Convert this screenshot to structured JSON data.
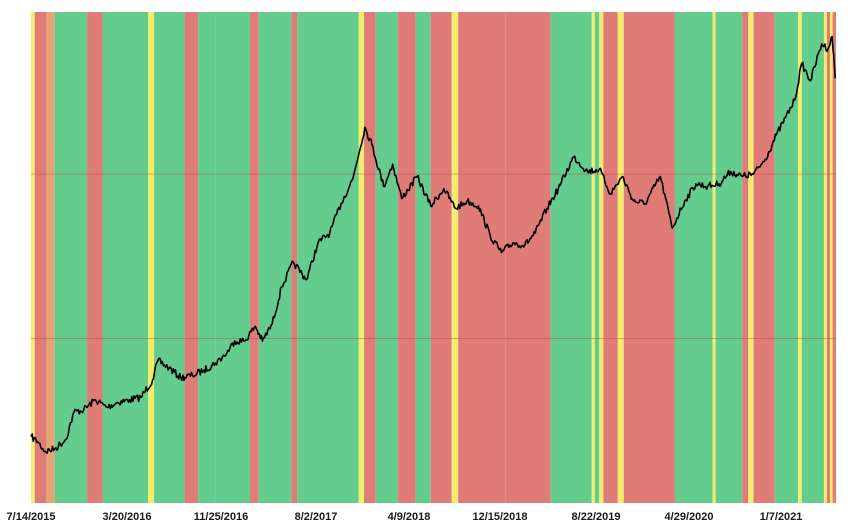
{
  "chart_data": {
    "type": "line",
    "title": "",
    "xlabel": "",
    "ylabel": "",
    "x_ticks": [
      "7/14/2015",
      "3/20/2016",
      "11/25/2016",
      "8/2/2017",
      "4/9/2018",
      "12/15/2018",
      "8/22/2019",
      "4/29/2020",
      "1/7/2021"
    ],
    "y_ticks": [],
    "grid": "horizontal",
    "series": [
      {
        "color": "#000000",
        "points": [
          [
            "2015-07-14",
            0.135
          ],
          [
            "2015-08-01",
            0.125
          ],
          [
            "2015-08-20",
            0.105
          ],
          [
            "2015-09-15",
            0.11
          ],
          [
            "2015-10-15",
            0.13
          ],
          [
            "2015-11-05",
            0.185
          ],
          [
            "2015-12-01",
            0.19
          ],
          [
            "2016-01-01",
            0.21
          ],
          [
            "2016-02-01",
            0.195
          ],
          [
            "2016-03-01",
            0.205
          ],
          [
            "2016-04-01",
            0.21
          ],
          [
            "2016-05-01",
            0.215
          ],
          [
            "2016-06-01",
            0.25
          ],
          [
            "2016-06-15",
            0.29
          ],
          [
            "2016-07-15",
            0.275
          ],
          [
            "2016-08-15",
            0.255
          ],
          [
            "2016-09-15",
            0.26
          ],
          [
            "2016-10-15",
            0.27
          ],
          [
            "2016-11-15",
            0.285
          ],
          [
            "2016-12-15",
            0.305
          ],
          [
            "2017-01-05",
            0.33
          ],
          [
            "2017-02-01",
            0.33
          ],
          [
            "2017-03-01",
            0.36
          ],
          [
            "2017-03-20",
            0.33
          ],
          [
            "2017-04-15",
            0.365
          ],
          [
            "2017-05-10",
            0.44
          ],
          [
            "2017-06-10",
            0.49
          ],
          [
            "2017-07-15",
            0.455
          ],
          [
            "2017-08-15",
            0.53
          ],
          [
            "2017-09-15",
            0.55
          ],
          [
            "2017-10-15",
            0.61
          ],
          [
            "2017-11-15",
            0.66
          ],
          [
            "2017-12-17",
            0.765
          ],
          [
            "2018-01-05",
            0.73
          ],
          [
            "2018-02-05",
            0.645
          ],
          [
            "2018-03-01",
            0.69
          ],
          [
            "2018-03-25",
            0.62
          ],
          [
            "2018-05-05",
            0.665
          ],
          [
            "2018-06-10",
            0.605
          ],
          [
            "2018-07-15",
            0.64
          ],
          [
            "2018-08-15",
            0.6
          ],
          [
            "2018-09-15",
            0.615
          ],
          [
            "2018-10-15",
            0.605
          ],
          [
            "2018-11-15",
            0.545
          ],
          [
            "2018-12-15",
            0.51
          ],
          [
            "2019-01-15",
            0.53
          ],
          [
            "2019-02-15",
            0.525
          ],
          [
            "2019-03-15",
            0.55
          ],
          [
            "2019-04-15",
            0.6
          ],
          [
            "2019-05-15",
            0.64
          ],
          [
            "2019-06-25",
            0.705
          ],
          [
            "2019-08-01",
            0.675
          ],
          [
            "2019-09-01",
            0.68
          ],
          [
            "2019-10-01",
            0.63
          ],
          [
            "2019-11-01",
            0.665
          ],
          [
            "2019-12-01",
            0.615
          ],
          [
            "2020-01-01",
            0.61
          ],
          [
            "2020-02-10",
            0.665
          ],
          [
            "2020-03-13",
            0.56
          ],
          [
            "2020-04-15",
            0.615
          ],
          [
            "2020-05-15",
            0.65
          ],
          [
            "2020-06-15",
            0.645
          ],
          [
            "2020-07-15",
            0.65
          ],
          [
            "2020-08-15",
            0.675
          ],
          [
            "2020-09-15",
            0.665
          ],
          [
            "2020-10-15",
            0.67
          ],
          [
            "2020-11-15",
            0.7
          ],
          [
            "2020-12-15",
            0.75
          ],
          [
            "2021-01-08",
            0.785
          ],
          [
            "2021-02-01",
            0.82
          ],
          [
            "2021-02-20",
            0.895
          ],
          [
            "2021-03-15",
            0.86
          ],
          [
            "2021-04-14",
            0.935
          ],
          [
            "2021-05-01",
            0.925
          ],
          [
            "2021-05-12",
            0.95
          ],
          [
            "2021-05-20",
            0.865
          ]
        ]
      }
    ],
    "regions": [
      {
        "start": "2015-07-14",
        "end": "2015-07-24",
        "color": "#f2ee6b"
      },
      {
        "start": "2015-07-24",
        "end": "2015-08-24",
        "color": "#df7c78"
      },
      {
        "start": "2015-08-24",
        "end": "2015-09-15",
        "color": "#e1a576"
      },
      {
        "start": "2015-09-15",
        "end": "2015-12-10",
        "color": "#64cd8d"
      },
      {
        "start": "2015-12-10",
        "end": "2016-01-20",
        "color": "#df7c78"
      },
      {
        "start": "2016-01-20",
        "end": "2016-05-20",
        "color": "#64cd8d"
      },
      {
        "start": "2016-05-20",
        "end": "2016-06-05",
        "color": "#f2ee6b"
      },
      {
        "start": "2016-06-05",
        "end": "2016-08-25",
        "color": "#64cd8d"
      },
      {
        "start": "2016-08-25",
        "end": "2016-09-30",
        "color": "#df7c78"
      },
      {
        "start": "2016-09-30",
        "end": "2016-11-15",
        "color": "#64cd8d"
      },
      {
        "start": "2016-11-15",
        "end": "2017-02-15",
        "color": "#64cd8d"
      },
      {
        "start": "2017-02-15",
        "end": "2017-03-10",
        "color": "#df7c78"
      },
      {
        "start": "2017-03-10",
        "end": "2017-06-05",
        "color": "#64cd8d"
      },
      {
        "start": "2017-06-05",
        "end": "2017-06-20",
        "color": "#df7c78"
      },
      {
        "start": "2017-06-20",
        "end": "2017-12-01",
        "color": "#64cd8d"
      },
      {
        "start": "2017-12-01",
        "end": "2017-12-15",
        "color": "#f2ee6b"
      },
      {
        "start": "2017-12-15",
        "end": "2018-01-15",
        "color": "#df7c78"
      },
      {
        "start": "2018-01-15",
        "end": "2018-03-15",
        "color": "#64cd8d"
      },
      {
        "start": "2018-03-15",
        "end": "2018-05-01",
        "color": "#df7c78"
      },
      {
        "start": "2018-05-01",
        "end": "2018-06-10",
        "color": "#64cd8d"
      },
      {
        "start": "2018-06-10",
        "end": "2018-08-05",
        "color": "#df7c78"
      },
      {
        "start": "2018-08-05",
        "end": "2018-08-22",
        "color": "#f2ee6b"
      },
      {
        "start": "2018-08-22",
        "end": "2018-12-25",
        "color": "#df7c78"
      },
      {
        "start": "2018-12-25",
        "end": "2019-04-25",
        "color": "#df7c78"
      },
      {
        "start": "2019-04-25",
        "end": "2019-08-12",
        "color": "#64cd8d"
      },
      {
        "start": "2019-08-12",
        "end": "2019-08-20",
        "color": "#f2ee6b"
      },
      {
        "start": "2019-08-20",
        "end": "2019-09-01",
        "color": "#64cd8d"
      },
      {
        "start": "2019-09-01",
        "end": "2019-09-12",
        "color": "#f2ee6b"
      },
      {
        "start": "2019-09-12",
        "end": "2019-10-20",
        "color": "#df7c78"
      },
      {
        "start": "2019-10-20",
        "end": "2019-11-05",
        "color": "#f2ee6b"
      },
      {
        "start": "2019-11-05",
        "end": "2020-03-20",
        "color": "#df7c78"
      },
      {
        "start": "2020-03-20",
        "end": "2020-06-28",
        "color": "#64cd8d"
      },
      {
        "start": "2020-06-28",
        "end": "2020-07-06",
        "color": "#f2ee6b"
      },
      {
        "start": "2020-07-06",
        "end": "2020-09-15",
        "color": "#64cd8d"
      },
      {
        "start": "2020-09-15",
        "end": "2020-10-01",
        "color": "#df7c78"
      },
      {
        "start": "2020-10-01",
        "end": "2020-10-15",
        "color": "#f2ee6b"
      },
      {
        "start": "2020-10-15",
        "end": "2020-12-10",
        "color": "#df7c78"
      },
      {
        "start": "2020-12-10",
        "end": "2021-02-10",
        "color": "#64cd8d"
      },
      {
        "start": "2021-02-10",
        "end": "2021-02-20",
        "color": "#f2ee6b"
      },
      {
        "start": "2021-02-20",
        "end": "2021-04-20",
        "color": "#64cd8d"
      },
      {
        "start": "2021-04-20",
        "end": "2021-04-28",
        "color": "#f2ee6b"
      },
      {
        "start": "2021-04-28",
        "end": "2021-05-06",
        "color": "#df7c78"
      },
      {
        "start": "2021-05-06",
        "end": "2021-05-13",
        "color": "#f2ee6b"
      },
      {
        "start": "2021-05-13",
        "end": "2021-05-22",
        "color": "#df7c78"
      }
    ],
    "colors": {
      "green": "#64cd8d",
      "red": "#df7c78",
      "yellow": "#f2ee6b",
      "orange": "#e1a576",
      "line": "#000000",
      "grid": "#b74a4a"
    }
  }
}
